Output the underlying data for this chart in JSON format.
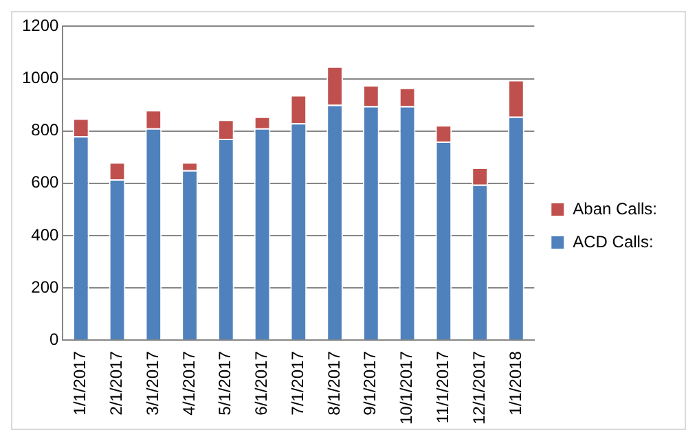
{
  "chart_data": {
    "type": "bar",
    "stacked": true,
    "categories": [
      "1/1/2017",
      "2/1/2017",
      "3/1/2017",
      "4/1/2017",
      "5/1/2017",
      "6/1/2017",
      "7/1/2017",
      "8/1/2017",
      "9/1/2017",
      "10/1/2017",
      "11/1/2017",
      "12/1/2017",
      "1/1/2018"
    ],
    "series": [
      {
        "name": "ACD Calls:",
        "color": "#4f81bd",
        "values": [
          780,
          615,
          810,
          650,
          770,
          810,
          830,
          900,
          895,
          895,
          760,
          595,
          855
        ]
      },
      {
        "name": "Aban Calls:",
        "color": "#c0504d",
        "values": [
          68,
          65,
          70,
          30,
          73,
          45,
          107,
          147,
          80,
          70,
          62,
          65,
          140
        ]
      }
    ],
    "ylim": [
      0,
      1200
    ],
    "yticks": [
      0,
      200,
      400,
      600,
      800,
      1000,
      1200
    ],
    "grid": "y",
    "legend": "right"
  }
}
